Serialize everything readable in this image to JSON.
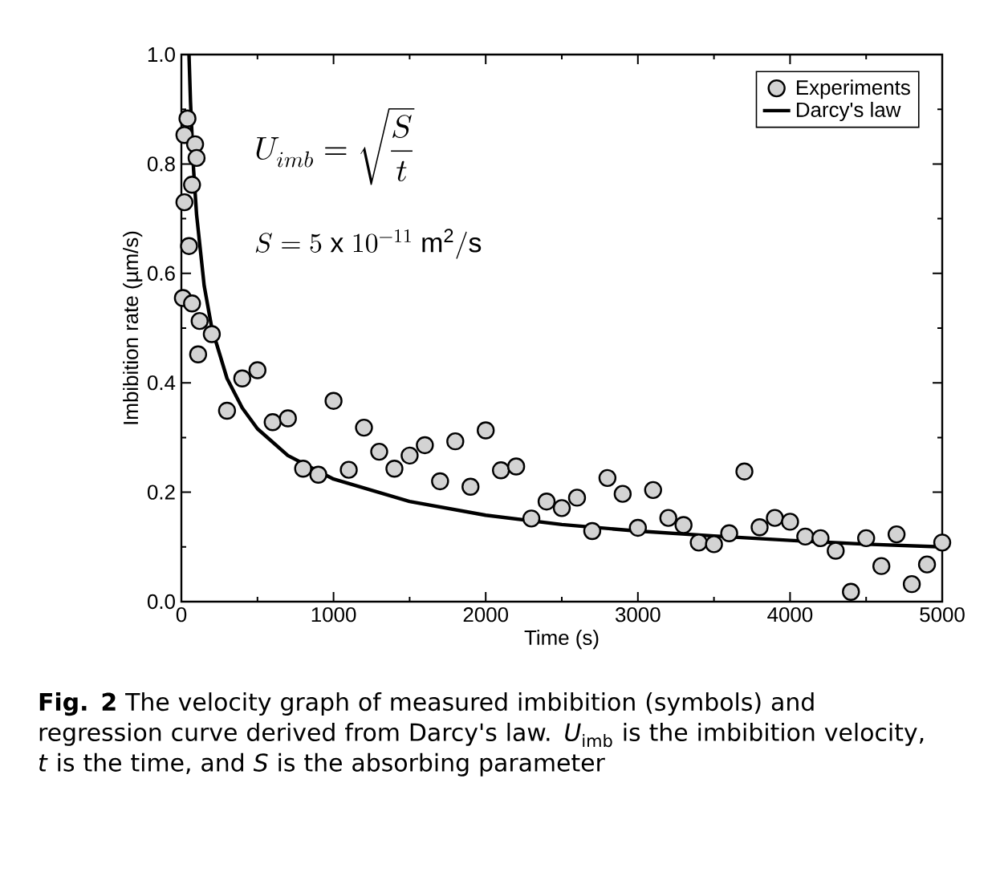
{
  "chart_data": {
    "type": "scatter",
    "xlabel": "Time (s)",
    "ylabel": "Imbibition rate (µm/s)",
    "xlim": [
      0,
      5000
    ],
    "ylim": [
      0,
      1.0
    ],
    "xticks": [
      0,
      1000,
      2000,
      3000,
      4000,
      5000
    ],
    "yticks": [
      {
        "value": 0,
        "label": "0.0"
      },
      {
        "value": 0.2,
        "label": "0.2"
      },
      {
        "value": 0.4,
        "label": "0.4"
      },
      {
        "value": 0.6,
        "label": "0.6"
      },
      {
        "value": 0.8,
        "label": "0.8"
      },
      {
        "value": 1.0,
        "label": "1.0"
      }
    ],
    "legend": "top right",
    "grid": false,
    "series": [
      {
        "name": "Experiments",
        "marker": "circle",
        "color": "#d3d3d3",
        "x": [
          10,
          20,
          20,
          40,
          50,
          70,
          70,
          90,
          100,
          110,
          120,
          200,
          300,
          400,
          500,
          600,
          700,
          800,
          900,
          1000,
          1100,
          1200,
          1300,
          1400,
          1500,
          1600,
          1700,
          1800,
          1900,
          2000,
          2100,
          2200,
          2300,
          2400,
          2500,
          2600,
          2700,
          2800,
          2900,
          3000,
          3100,
          3200,
          3300,
          3400,
          3500,
          3600,
          3700,
          3800,
          3900,
          4000,
          4100,
          4200,
          4300,
          4400,
          4500,
          4600,
          4700,
          4800,
          4900,
          5000
        ],
        "values": [
          0.555,
          0.853,
          0.73,
          0.883,
          0.65,
          0.545,
          0.762,
          0.836,
          0.811,
          0.452,
          0.513,
          0.489,
          0.349,
          0.408,
          0.423,
          0.328,
          0.335,
          0.243,
          0.232,
          0.367,
          0.241,
          0.318,
          0.274,
          0.243,
          0.267,
          0.286,
          0.22,
          0.293,
          0.21,
          0.313,
          0.24,
          0.247,
          0.152,
          0.183,
          0.171,
          0.19,
          0.129,
          0.226,
          0.197,
          0.135,
          0.204,
          0.153,
          0.14,
          0.108,
          0.105,
          0.125,
          0.238,
          0.136,
          0.153,
          0.146,
          0.119,
          0.116,
          0.093,
          0.018,
          0.116,
          0.065,
          0.123,
          0.032,
          0.068,
          0.108
        ]
      },
      {
        "name": "Darcy's law",
        "type": "line",
        "marker": "none",
        "line_style": "solid",
        "color": "#000000",
        "x": [
          50,
          60,
          80,
          100,
          150,
          200,
          300,
          400,
          500,
          700,
          1000,
          1500,
          2000,
          2500,
          3000,
          3500,
          4000,
          4500,
          5000
        ],
        "values": [
          1.0,
          0.913,
          0.79,
          0.707,
          0.577,
          0.5,
          0.408,
          0.354,
          0.316,
          0.267,
          0.224,
          0.183,
          0.158,
          0.141,
          0.129,
          0.12,
          0.112,
          0.105,
          0.1
        ]
      }
    ],
    "annotations": [
      "U_{imb} = \\sqrt{\\dfrac{S}{t}}",
      "S = 5\\ \\mathrm{x}\\ 10^{-11}\\ \\mathrm{m^{2}/s}",
      "**Fig. 2** The velocity graph of measured imbibition (symbols) and regression curve derived from Darcy's law. *U*$_{imb}$ is the imbibition velocity, *t* is the time, and *S* is the absorbing parameter"
    ]
  }
}
